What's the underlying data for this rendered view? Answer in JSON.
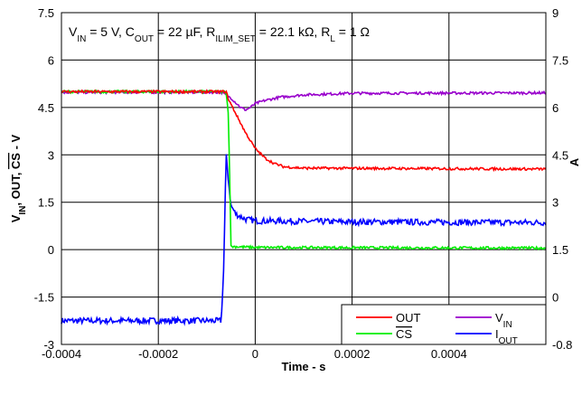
{
  "chart_data": {
    "type": "line",
    "annotation": {
      "parts": [
        {
          "t": "V"
        },
        {
          "t": "IN",
          "sub": true
        },
        {
          "t": " = 5 V, C"
        },
        {
          "t": "OUT",
          "sub": true
        },
        {
          "t": " = 22 µF, R"
        },
        {
          "t": "ILIM_SET",
          "sub": true
        },
        {
          "t": " = 22.1 kΩ, R"
        },
        {
          "t": "L",
          "sub": true
        },
        {
          "t": " = 1 Ω"
        }
      ]
    },
    "xlabel": "Time - s",
    "ylabel_left": {
      "parts": [
        {
          "t": "V"
        },
        {
          "t": "IN",
          "sub": true
        },
        {
          "t": ", OUT, "
        },
        {
          "t": "CS",
          "over": true
        },
        {
          "t": " - V"
        }
      ]
    },
    "ylabel_right": "A",
    "xlim": [
      -0.0004,
      0.0006
    ],
    "ylim_left": [
      -3,
      7.5
    ],
    "ylim_right": [
      -0.8,
      9
    ],
    "xticks": [
      -0.0004,
      -0.0002,
      0,
      0.0002,
      0.0004
    ],
    "xtick_labels": [
      "-0.0004",
      "-0.0002",
      "0",
      "0.0002",
      "0.0004"
    ],
    "yticks_left": [
      -3,
      -1.5,
      0,
      1.5,
      3,
      4.5,
      6,
      7.5
    ],
    "ytick_labels_left": [
      "-3",
      "-1.5",
      "0",
      "1.5",
      "3",
      "4.5",
      "6",
      "7.5"
    ],
    "ytick_labels_right": [
      "-0.8",
      "0",
      "1.5",
      "3",
      "4.5",
      "6",
      "7.5",
      "9"
    ],
    "grid": true,
    "legend_position": "bottom-right",
    "series": [
      {
        "name": "OUT",
        "key": "out",
        "color": "#ff0000",
        "axis": "left",
        "points": [
          [
            -0.0004,
            5.0
          ],
          [
            -6e-05,
            5.0
          ],
          [
            -5.5e-05,
            4.75
          ],
          [
            -4e-05,
            4.3
          ],
          [
            -2e-05,
            3.7
          ],
          [
            0.0,
            3.2
          ],
          [
            2e-05,
            2.9
          ],
          [
            4e-05,
            2.72
          ],
          [
            6e-05,
            2.62
          ],
          [
            0.0001,
            2.58
          ],
          [
            0.0006,
            2.55
          ]
        ]
      },
      {
        "name": "CS",
        "key": "cs",
        "overline": true,
        "color": "#00ee00",
        "axis": "left",
        "points": [
          [
            -0.0004,
            5.0
          ],
          [
            -6e-05,
            5.0
          ],
          [
            -5.5e-05,
            4.2
          ],
          [
            -5e-05,
            0.1
          ],
          [
            0.0,
            0.07
          ],
          [
            0.0006,
            0.05
          ]
        ]
      },
      {
        "name": "VIN",
        "label_parts": [
          {
            "t": "V"
          },
          {
            "t": "IN",
            "sub": true
          }
        ],
        "key": "vin",
        "color": "#9900cc",
        "axis": "left",
        "points": [
          [
            -0.0004,
            4.98
          ],
          [
            -7e-05,
            4.98
          ],
          [
            -5e-05,
            4.8
          ],
          [
            -3e-05,
            4.5
          ],
          [
            -2e-05,
            4.42
          ],
          [
            -1e-05,
            4.5
          ],
          [
            0.0,
            4.62
          ],
          [
            2e-05,
            4.72
          ],
          [
            5e-05,
            4.82
          ],
          [
            0.0001,
            4.9
          ],
          [
            0.0002,
            4.95
          ],
          [
            0.0006,
            4.96
          ]
        ]
      },
      {
        "name": "IOUT",
        "label_parts": [
          {
            "t": "I"
          },
          {
            "t": "OUT",
            "sub": true
          }
        ],
        "key": "iout",
        "color": "#0000ff",
        "axis": "right",
        "points": [
          [
            -0.0004,
            -0.1
          ],
          [
            -7e-05,
            -0.1
          ],
          [
            -6.5e-05,
            1.5
          ],
          [
            -6e-05,
            4.8
          ],
          [
            -5.5e-05,
            4.0
          ],
          [
            -5e-05,
            3.3
          ],
          [
            -4e-05,
            3.05
          ],
          [
            -2e-05,
            2.9
          ],
          [
            0.0,
            2.85
          ],
          [
            0.0002,
            2.82
          ],
          [
            0.0006,
            2.8
          ]
        ]
      }
    ]
  }
}
